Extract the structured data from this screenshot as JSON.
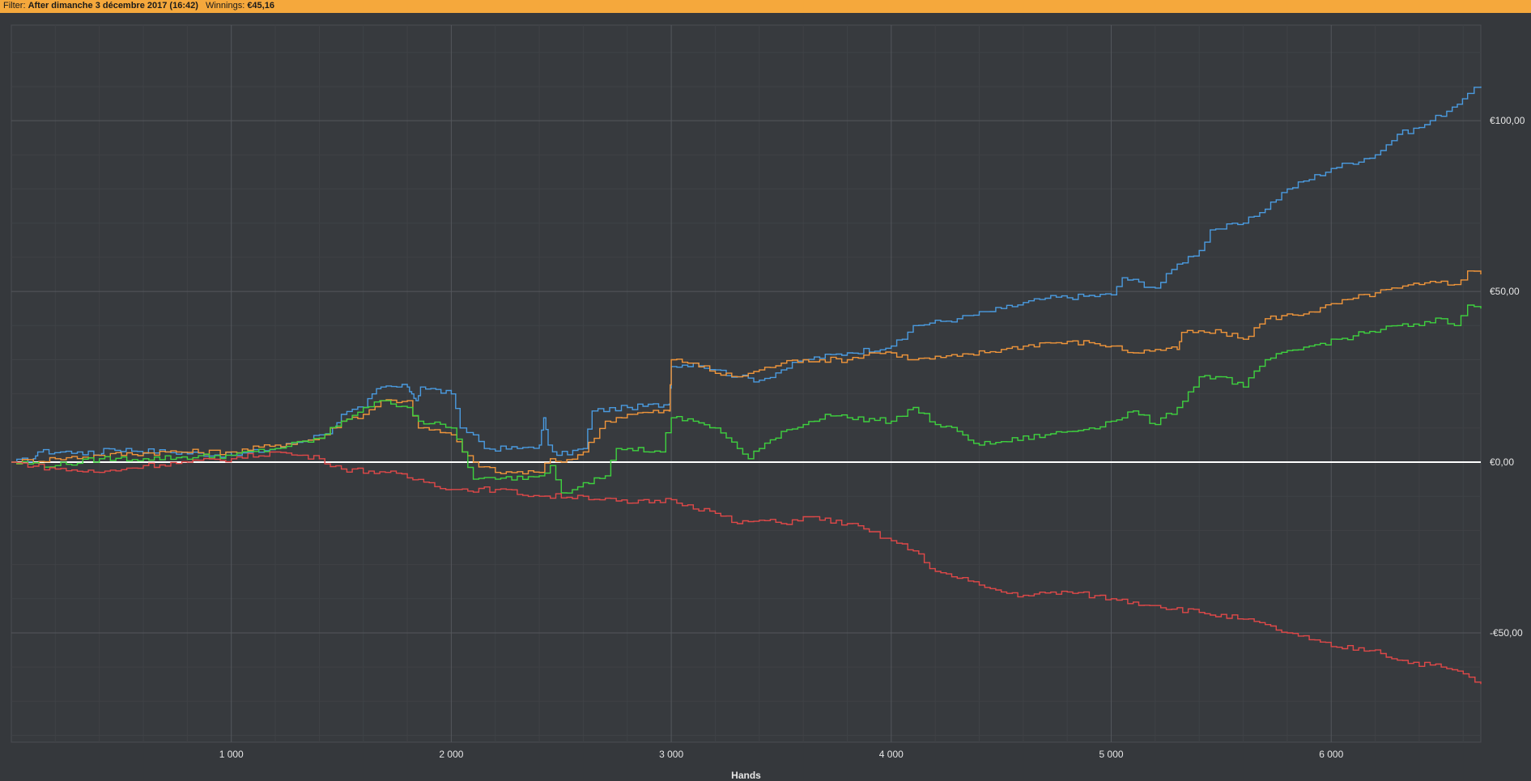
{
  "filter_bar": {
    "filter_label": "Filter:",
    "filter_value": "After dimanche 3 décembre 2017 (16:42)",
    "winnings_label": "Winnings:",
    "winnings_value": "€45,16",
    "background_color": "#f5a83c"
  },
  "chart_data": {
    "type": "line",
    "xlabel": "Hands",
    "ylabel": "",
    "xlim": [
      0,
      6680
    ],
    "ylim": [
      -82,
      128
    ],
    "x_ticks": [
      1000,
      2000,
      3000,
      4000,
      5000,
      6000
    ],
    "x_tick_labels": [
      "1 000",
      "2 000",
      "3 000",
      "4 000",
      "5 000",
      "6 000"
    ],
    "y_ticks": [
      -50,
      0,
      50,
      100
    ],
    "y_tick_labels": [
      "-€50,00",
      "€0,00",
      "€50,00",
      "€100,00"
    ],
    "y_axis_side": "right",
    "grid": true,
    "zero_line_color": "#ffffff",
    "series": [
      {
        "color": "#4a9be0",
        "points": [
          [
            0,
            0
          ],
          [
            100,
            1
          ],
          [
            120,
            3
          ],
          [
            300,
            3
          ],
          [
            400,
            2
          ],
          [
            420,
            4
          ],
          [
            700,
            3
          ],
          [
            1000,
            2
          ],
          [
            1200,
            4
          ],
          [
            1400,
            8
          ],
          [
            1460,
            10
          ],
          [
            1500,
            14
          ],
          [
            1600,
            16
          ],
          [
            1640,
            20
          ],
          [
            1680,
            22
          ],
          [
            1800,
            22
          ],
          [
            1820,
            20
          ],
          [
            1840,
            18
          ],
          [
            1860,
            22
          ],
          [
            2000,
            20
          ],
          [
            2040,
            10
          ],
          [
            2100,
            8
          ],
          [
            2150,
            4
          ],
          [
            2300,
            4
          ],
          [
            2400,
            5
          ],
          [
            2420,
            13
          ],
          [
            2440,
            5
          ],
          [
            2480,
            2
          ],
          [
            2600,
            4
          ],
          [
            2640,
            15
          ],
          [
            2800,
            16
          ],
          [
            2990,
            17
          ],
          [
            3000,
            28
          ],
          [
            3100,
            29
          ],
          [
            3200,
            27
          ],
          [
            3300,
            25
          ],
          [
            3400,
            24
          ],
          [
            3500,
            27
          ],
          [
            3600,
            30
          ],
          [
            3800,
            32
          ],
          [
            4000,
            34
          ],
          [
            4050,
            36
          ],
          [
            4100,
            40
          ],
          [
            4300,
            42
          ],
          [
            4500,
            45
          ],
          [
            4700,
            48
          ],
          [
            5000,
            49
          ],
          [
            5050,
            54
          ],
          [
            5200,
            51
          ],
          [
            5300,
            58
          ],
          [
            5400,
            62
          ],
          [
            5450,
            68
          ],
          [
            5600,
            70
          ],
          [
            5650,
            72
          ],
          [
            5800,
            80
          ],
          [
            6000,
            86
          ],
          [
            6200,
            90
          ],
          [
            6300,
            96
          ],
          [
            6400,
            98
          ],
          [
            6550,
            104
          ],
          [
            6620,
            108
          ],
          [
            6680,
            110
          ]
        ]
      },
      {
        "color": "#f0953a",
        "points": [
          [
            0,
            0
          ],
          [
            200,
            1
          ],
          [
            400,
            2
          ],
          [
            700,
            3
          ],
          [
            1000,
            3
          ],
          [
            1200,
            5
          ],
          [
            1400,
            7
          ],
          [
            1500,
            12
          ],
          [
            1600,
            14
          ],
          [
            1680,
            18
          ],
          [
            1800,
            18
          ],
          [
            1850,
            10
          ],
          [
            2000,
            8
          ],
          [
            2050,
            3
          ],
          [
            2100,
            0
          ],
          [
            2200,
            -3
          ],
          [
            2400,
            -3
          ],
          [
            2450,
            1
          ],
          [
            2500,
            0
          ],
          [
            2600,
            3
          ],
          [
            2700,
            12
          ],
          [
            2800,
            14
          ],
          [
            2990,
            15
          ],
          [
            3000,
            30
          ],
          [
            3100,
            29
          ],
          [
            3200,
            26
          ],
          [
            3300,
            25
          ],
          [
            3400,
            27
          ],
          [
            3500,
            29
          ],
          [
            3600,
            30
          ],
          [
            3800,
            30
          ],
          [
            3900,
            32
          ],
          [
            4000,
            32
          ],
          [
            4100,
            30
          ],
          [
            4300,
            31
          ],
          [
            4500,
            33
          ],
          [
            4700,
            35
          ],
          [
            4900,
            35
          ],
          [
            5000,
            34
          ],
          [
            5100,
            32
          ],
          [
            5200,
            33
          ],
          [
            5300,
            33
          ],
          [
            5320,
            38
          ],
          [
            5500,
            38
          ],
          [
            5600,
            36
          ],
          [
            5700,
            42
          ],
          [
            5900,
            44
          ],
          [
            6100,
            48
          ],
          [
            6300,
            51
          ],
          [
            6400,
            52
          ],
          [
            6500,
            53
          ],
          [
            6560,
            52
          ],
          [
            6620,
            56
          ],
          [
            6680,
            55
          ]
        ]
      },
      {
        "color": "#3ed23e",
        "points": [
          [
            0,
            0
          ],
          [
            200,
            -1
          ],
          [
            400,
            1
          ],
          [
            600,
            1
          ],
          [
            1000,
            2
          ],
          [
            1200,
            4
          ],
          [
            1400,
            7
          ],
          [
            1500,
            12
          ],
          [
            1600,
            16
          ],
          [
            1700,
            18
          ],
          [
            1800,
            16
          ],
          [
            1850,
            12
          ],
          [
            2000,
            10
          ],
          [
            2050,
            3
          ],
          [
            2100,
            -5
          ],
          [
            2200,
            -5
          ],
          [
            2400,
            -4
          ],
          [
            2450,
            -1
          ],
          [
            2500,
            -9
          ],
          [
            2600,
            -6
          ],
          [
            2700,
            -4
          ],
          [
            2750,
            4
          ],
          [
            2800,
            4
          ],
          [
            2950,
            3
          ],
          [
            3000,
            13
          ],
          [
            3100,
            12
          ],
          [
            3200,
            10
          ],
          [
            3300,
            4
          ],
          [
            3350,
            1
          ],
          [
            3400,
            4
          ],
          [
            3500,
            9
          ],
          [
            3600,
            11
          ],
          [
            3700,
            14
          ],
          [
            3800,
            13
          ],
          [
            4000,
            12
          ],
          [
            4100,
            16
          ],
          [
            4200,
            11
          ],
          [
            4300,
            9
          ],
          [
            4400,
            5
          ],
          [
            4500,
            6
          ],
          [
            4700,
            8
          ],
          [
            4900,
            10
          ],
          [
            5000,
            12
          ],
          [
            5100,
            15
          ],
          [
            5200,
            11
          ],
          [
            5300,
            16
          ],
          [
            5400,
            25
          ],
          [
            5500,
            25
          ],
          [
            5600,
            22
          ],
          [
            5700,
            30
          ],
          [
            5900,
            34
          ],
          [
            6100,
            37
          ],
          [
            6300,
            40
          ],
          [
            6400,
            40
          ],
          [
            6500,
            42
          ],
          [
            6560,
            40
          ],
          [
            6620,
            46
          ],
          [
            6680,
            45
          ]
        ]
      },
      {
        "color": "#e04848",
        "points": [
          [
            0,
            0
          ],
          [
            200,
            -2
          ],
          [
            400,
            -3
          ],
          [
            600,
            -1
          ],
          [
            800,
            0
          ],
          [
            1000,
            1
          ],
          [
            1200,
            3
          ],
          [
            1300,
            2
          ],
          [
            1400,
            1
          ],
          [
            1500,
            -2
          ],
          [
            1700,
            -3
          ],
          [
            1900,
            -6
          ],
          [
            2000,
            -8
          ],
          [
            2200,
            -8
          ],
          [
            2400,
            -10
          ],
          [
            2600,
            -10
          ],
          [
            2800,
            -12
          ],
          [
            3000,
            -11
          ],
          [
            3200,
            -15
          ],
          [
            3300,
            -18
          ],
          [
            3400,
            -17
          ],
          [
            3500,
            -18
          ],
          [
            3600,
            -16
          ],
          [
            3800,
            -18
          ],
          [
            4000,
            -23
          ],
          [
            4100,
            -26
          ],
          [
            4200,
            -32
          ],
          [
            4300,
            -34
          ],
          [
            4400,
            -36
          ],
          [
            4500,
            -38
          ],
          [
            4600,
            -39
          ],
          [
            4800,
            -38
          ],
          [
            5000,
            -40
          ],
          [
            5200,
            -42
          ],
          [
            5400,
            -44
          ],
          [
            5600,
            -46
          ],
          [
            5800,
            -50
          ],
          [
            5900,
            -52
          ],
          [
            6000,
            -54
          ],
          [
            6200,
            -55
          ],
          [
            6300,
            -58
          ],
          [
            6500,
            -60
          ],
          [
            6600,
            -62
          ],
          [
            6680,
            -65
          ]
        ]
      }
    ]
  }
}
